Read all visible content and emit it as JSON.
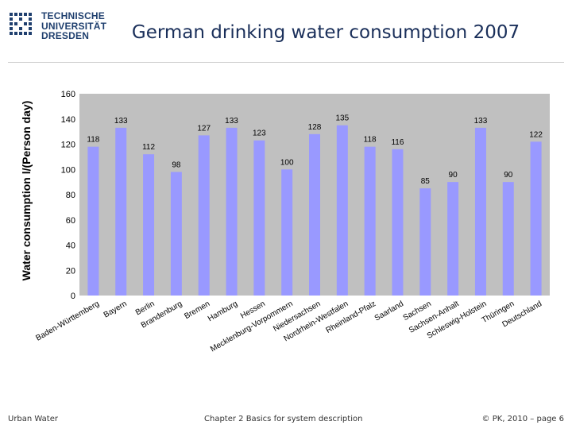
{
  "header": {
    "logo_lines": [
      "TECHNISCHE",
      "UNIVERSITÄT",
      "DRESDEN"
    ]
  },
  "chart_data": {
    "type": "bar",
    "title": "German drinking water consumption 2007",
    "xlabel": "",
    "ylabel": "Water consumption  l/(Person day)",
    "ylim": [
      0,
      160
    ],
    "yticks": [
      0,
      20,
      40,
      60,
      80,
      100,
      120,
      140,
      160
    ],
    "grid": false,
    "legend": "none",
    "bar_color": "#9999ff",
    "plot_bg": "#c0c0c0",
    "categories": [
      "Baden-Württemberg",
      "Bayern",
      "Berlin",
      "Brandenburg",
      "Bremen",
      "Hamburg",
      "Hessen",
      "Mecklenburg-Vorpommern",
      "Niedersachsen",
      "Nordrhein-Westfalen",
      "Rheinland-Pfalz",
      "Saarland",
      "Sachsen",
      "Sachsen-Anhalt",
      "Schleswig-Holstein",
      "Thüringen",
      "Deutschland"
    ],
    "values": [
      118,
      133,
      112,
      98,
      127,
      133,
      123,
      100,
      128,
      135,
      118,
      116,
      85,
      90,
      133,
      90,
      122
    ]
  },
  "footer": {
    "left": "Urban Water",
    "center": "Chapter 2  Basics for system description",
    "right": "© PK, 2010 – page 6"
  }
}
